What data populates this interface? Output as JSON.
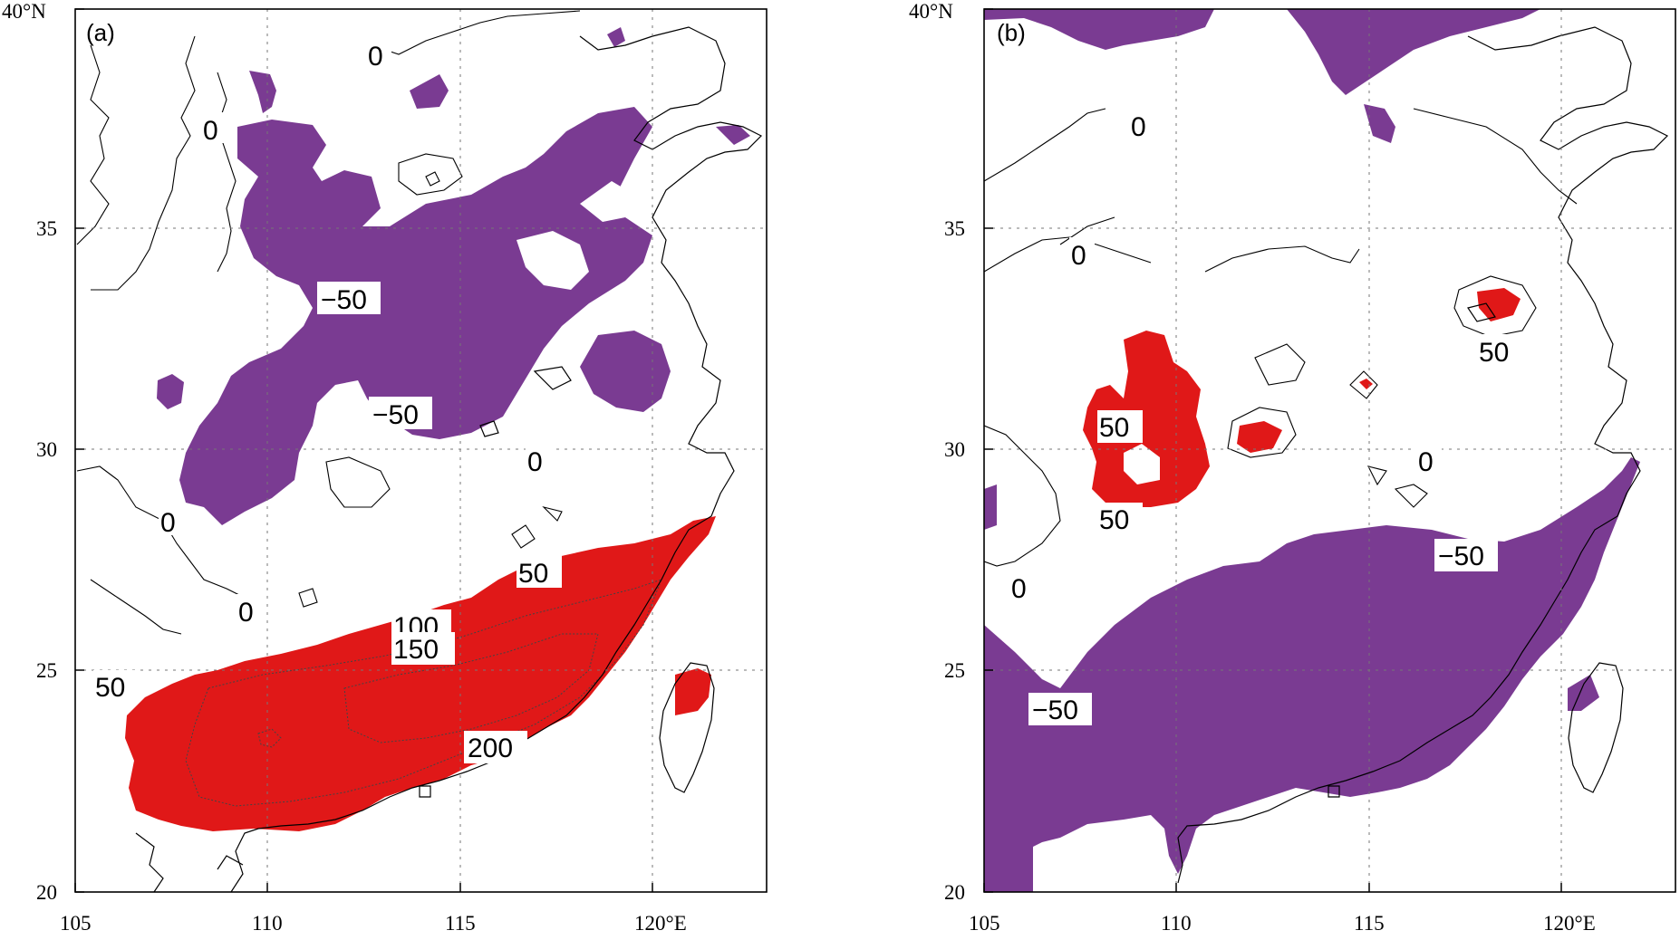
{
  "colors": {
    "negative": "#7a3b92",
    "positive": "#e01818",
    "coast": "#000000",
    "grid": "#777777"
  },
  "x_ticks": [
    "105",
    "110",
    "115",
    "120°E"
  ],
  "y_ticks": [
    "40°N",
    "35",
    "30",
    "25",
    "20"
  ],
  "panels": [
    {
      "label": "(a)",
      "contour_labels": [
        "0",
        "0",
        "−50",
        "−50",
        "0",
        "0",
        "0",
        "50",
        "100",
        "150",
        "50",
        "200"
      ]
    },
    {
      "label": "(b)",
      "contour_labels": [
        "0",
        "0",
        "50",
        "50",
        "50",
        "0",
        "−50",
        "0",
        "−50"
      ]
    }
  ]
}
